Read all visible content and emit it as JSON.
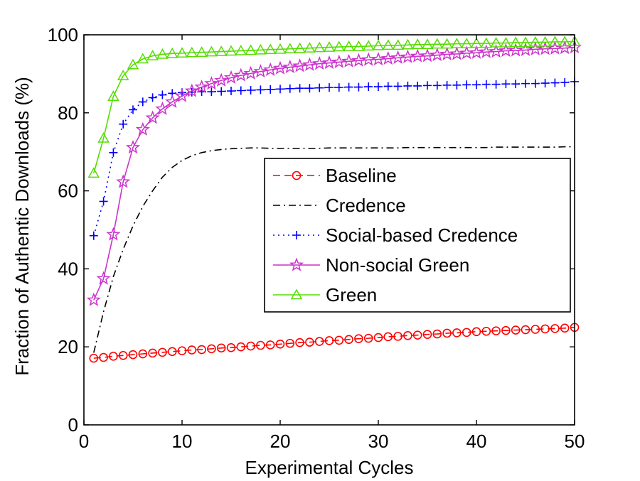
{
  "chart_data": {
    "type": "line",
    "title": "",
    "xlabel": "Experimental Cycles",
    "ylabel": "Fraction of Authentic Downloads (%)",
    "xlim": [
      0,
      50
    ],
    "ylim": [
      0,
      100
    ],
    "xticks": [
      0,
      10,
      20,
      30,
      40,
      50
    ],
    "yticks": [
      0,
      20,
      40,
      60,
      80,
      100
    ],
    "grid": false,
    "legend_position": "center-right",
    "x": [
      1,
      2,
      3,
      4,
      5,
      6,
      7,
      8,
      9,
      10,
      11,
      12,
      13,
      14,
      15,
      16,
      17,
      18,
      19,
      20,
      21,
      22,
      23,
      24,
      25,
      26,
      27,
      28,
      29,
      30,
      31,
      32,
      33,
      34,
      35,
      36,
      37,
      38,
      39,
      40,
      41,
      42,
      43,
      44,
      45,
      46,
      47,
      48,
      49,
      50
    ],
    "series": [
      {
        "name": "Baseline",
        "color": "#ff0000",
        "line_style": "dashed",
        "marker": "circle",
        "values": [
          17.1,
          17.3,
          17.6,
          17.8,
          18.0,
          18.2,
          18.4,
          18.6,
          18.8,
          19.0,
          19.2,
          19.3,
          19.5,
          19.7,
          19.8,
          20.0,
          20.2,
          20.4,
          20.5,
          20.7,
          20.9,
          21.1,
          21.2,
          21.4,
          21.6,
          21.7,
          21.9,
          22.1,
          22.2,
          22.4,
          22.6,
          22.7,
          22.9,
          23.0,
          23.2,
          23.3,
          23.5,
          23.6,
          23.7,
          23.9,
          24.0,
          24.1,
          24.2,
          24.3,
          24.4,
          24.5,
          24.6,
          24.7,
          24.8,
          25.0
        ]
      },
      {
        "name": "Credence",
        "color": "#000000",
        "line_style": "dashdot",
        "marker": "none",
        "values": [
          18.5,
          29,
          38,
          45,
          51,
          56,
          60,
          63.5,
          66,
          67.8,
          69,
          69.8,
          70.3,
          70.6,
          70.8,
          70.9,
          71.0,
          71.0,
          70.9,
          70.9,
          70.9,
          70.9,
          70.9,
          70.9,
          71.0,
          71.0,
          71.0,
          71.0,
          71.0,
          71.0,
          71.0,
          71.0,
          71.1,
          71.1,
          71.1,
          71.1,
          71.1,
          71.1,
          71.1,
          71.1,
          71.1,
          71.2,
          71.2,
          71.2,
          71.2,
          71.2,
          71.2,
          71.2,
          71.3,
          71.3
        ]
      },
      {
        "name": "Social-based Credence",
        "color": "#0000ff",
        "line_style": "dotted",
        "marker": "plus",
        "values": [
          48.5,
          57.3,
          69.8,
          77.1,
          80.8,
          82.8,
          83.9,
          84.6,
          85.0,
          85.2,
          85.3,
          85.4,
          85.4,
          85.5,
          85.6,
          85.7,
          85.8,
          85.9,
          86.0,
          86.1,
          86.2,
          86.3,
          86.3,
          86.4,
          86.5,
          86.5,
          86.6,
          86.6,
          86.7,
          86.7,
          86.8,
          86.8,
          86.9,
          86.9,
          87.0,
          87.0,
          87.1,
          87.1,
          87.2,
          87.2,
          87.3,
          87.3,
          87.4,
          87.4,
          87.5,
          87.5,
          87.6,
          87.7,
          87.8,
          88.0
        ]
      },
      {
        "name": "Non-social Green",
        "color": "#cc33cc",
        "line_style": "solid",
        "marker": "star",
        "values": [
          32,
          37.5,
          48.8,
          62.3,
          71.1,
          75.7,
          78.7,
          81.0,
          82.8,
          84.3,
          85.6,
          86.6,
          87.5,
          88.3,
          89.0,
          89.6,
          90.1,
          90.6,
          91.0,
          91.4,
          91.7,
          92.0,
          92.3,
          92.6,
          92.8,
          93.0,
          93.2,
          93.4,
          93.6,
          93.7,
          93.9,
          94.1,
          94.3,
          94.5,
          94.6,
          94.8,
          95.0,
          95.1,
          95.3,
          95.4,
          95.6,
          95.7,
          95.9,
          96.0,
          96.1,
          96.3,
          96.4,
          96.5,
          96.6,
          96.8
        ]
      },
      {
        "name": "Green",
        "color": "#55dd00",
        "line_style": "solid",
        "marker": "triangle",
        "values": [
          64.5,
          73.5,
          84.2,
          89.5,
          92.3,
          93.8,
          94.6,
          95.0,
          95.2,
          95.3,
          95.4,
          95.5,
          95.6,
          95.7,
          95.8,
          95.9,
          96.0,
          96.1,
          96.2,
          96.3,
          96.4,
          96.5,
          96.6,
          96.7,
          96.8,
          96.9,
          97.0,
          97.0,
          97.1,
          97.2,
          97.3,
          97.3,
          97.4,
          97.5,
          97.5,
          97.6,
          97.6,
          97.7,
          97.7,
          97.8,
          97.8,
          97.9,
          97.9,
          98.0,
          98.0,
          98.1,
          98.1,
          98.2,
          98.2,
          98.3
        ]
      }
    ]
  }
}
